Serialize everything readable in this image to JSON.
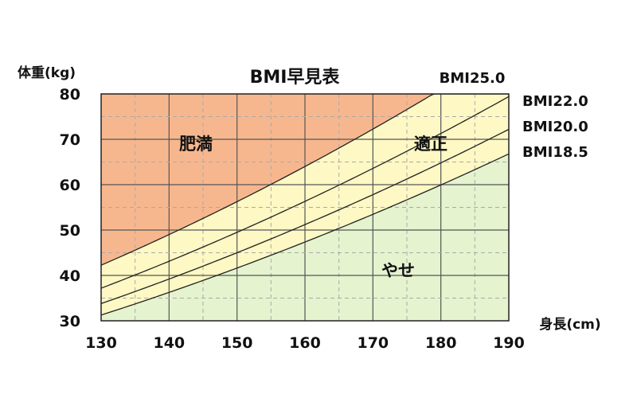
{
  "chart_data": {
    "type": "area",
    "title": "BMI早見表",
    "xlabel": "身長(cm)",
    "ylabel": "体重(kg)",
    "xlim": [
      130,
      190
    ],
    "ylim": [
      30,
      80
    ],
    "x_ticks": [
      "130",
      "140",
      "150",
      "160",
      "170",
      "180",
      "190"
    ],
    "y_ticks": [
      "30",
      "40",
      "50",
      "60",
      "70",
      "80"
    ],
    "grid": true,
    "series": [
      {
        "name": "BMI25.0",
        "bmi": 25.0,
        "x": [
          130,
          135,
          140,
          145,
          150,
          155,
          160,
          165,
          170,
          175,
          180
        ],
        "values": [
          42.25,
          45.56,
          49.0,
          52.56,
          56.25,
          60.06,
          64.0,
          68.06,
          72.25,
          76.56,
          81.0
        ]
      },
      {
        "name": "BMI22.0",
        "bmi": 22.0,
        "x": [
          130,
          140,
          150,
          160,
          170,
          180,
          190
        ],
        "values": [
          37.18,
          43.12,
          49.5,
          56.32,
          63.58,
          71.28,
          79.42
        ]
      },
      {
        "name": "BMI20.0",
        "bmi": 20.0,
        "x": [
          130,
          140,
          150,
          160,
          170,
          180,
          190
        ],
        "values": [
          33.8,
          39.2,
          45.0,
          51.2,
          57.8,
          64.8,
          72.2
        ]
      },
      {
        "name": "BMI18.5",
        "bmi": 18.5,
        "x": [
          130,
          140,
          150,
          160,
          170,
          180,
          190
        ],
        "values": [
          31.27,
          36.26,
          41.63,
          47.36,
          53.47,
          59.94,
          66.79
        ]
      }
    ],
    "zones": [
      {
        "label": "肥満",
        "color": "#f7b78e"
      },
      {
        "label": "適正",
        "color": "#fdf8c4"
      },
      {
        "label": "やせ",
        "color": "#e5f3cf"
      }
    ],
    "colors": {
      "grid_major": "#555555",
      "grid_minor": "#aaaaaa",
      "line": "#222222",
      "frame": "#222222"
    }
  }
}
